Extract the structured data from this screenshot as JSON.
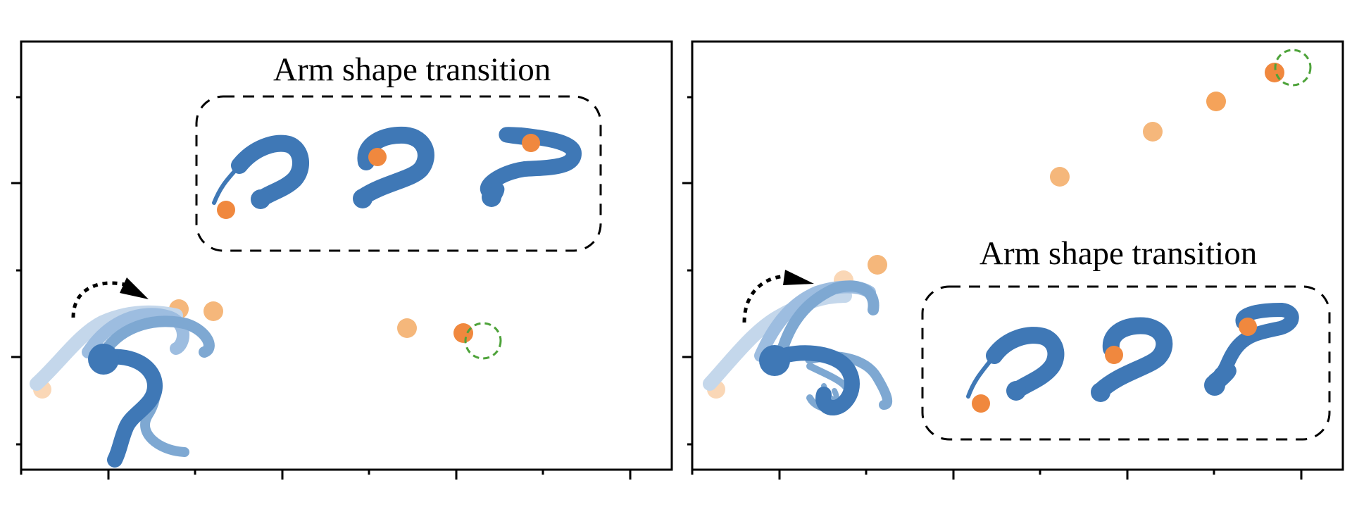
{
  "panels": [
    {
      "id": "left",
      "inset_label": "Arm shape transition"
    },
    {
      "id": "right",
      "inset_label": "Arm shape transition"
    }
  ],
  "colors": {
    "arm_dark": "#3f78b6",
    "arm_mid": "#7ea8d2",
    "arm_light": "#c4d7eb",
    "target_marker": "#f0883e",
    "trail_marker": "#f5b77b",
    "trail_marker_faint": "#fad7b6",
    "goal_circle": "#4ea33a",
    "frame": "#000000"
  },
  "icons": [
    "rotation-arrow-icon",
    "goal-circle-icon"
  ]
}
